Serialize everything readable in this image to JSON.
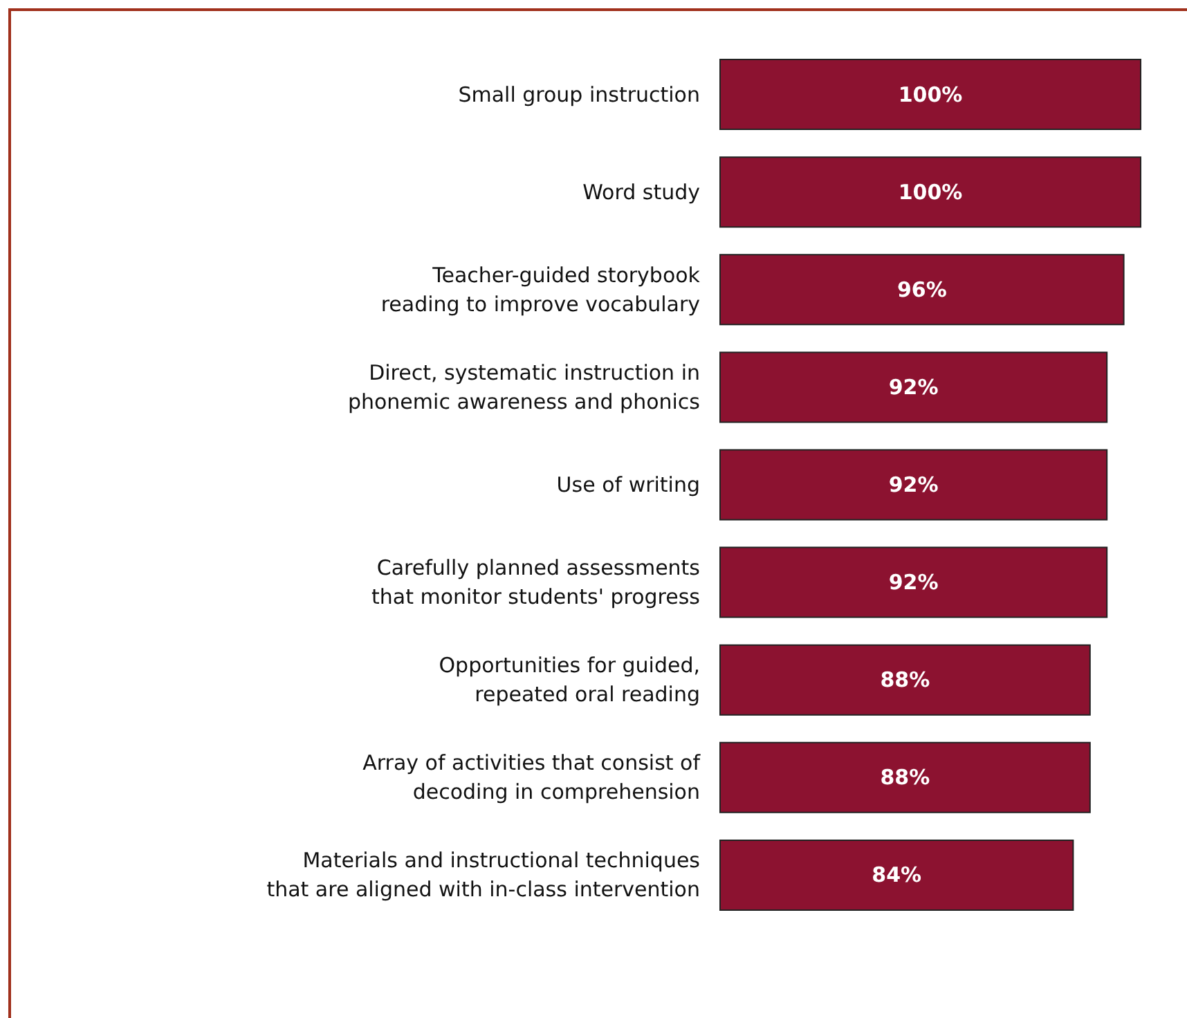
{
  "chart_data": {
    "type": "bar",
    "orientation": "horizontal",
    "value_labels": [
      "100%",
      "100%",
      "96%",
      "92%",
      "92%",
      "92%",
      "88%",
      "88%",
      "84%"
    ],
    "categories": [
      "Small group instruction",
      "Word study",
      "Teacher-guided storybook\nreading to improve vocabulary",
      "Direct, systematic instruction in\nphonemic awareness and phonics",
      "Use of writing",
      "Carefully planned assessments\nthat monitor students' progress",
      "Opportunities for guided,\nrepeated oral reading",
      "Array of activities that consist of\ndecoding in comprehension",
      "Materials and instructional techniques\nthat are aligned with in-class intervention"
    ],
    "values": [
      100,
      100,
      96,
      92,
      92,
      92,
      88,
      88,
      84
    ],
    "color": "#8c1230"
  }
}
